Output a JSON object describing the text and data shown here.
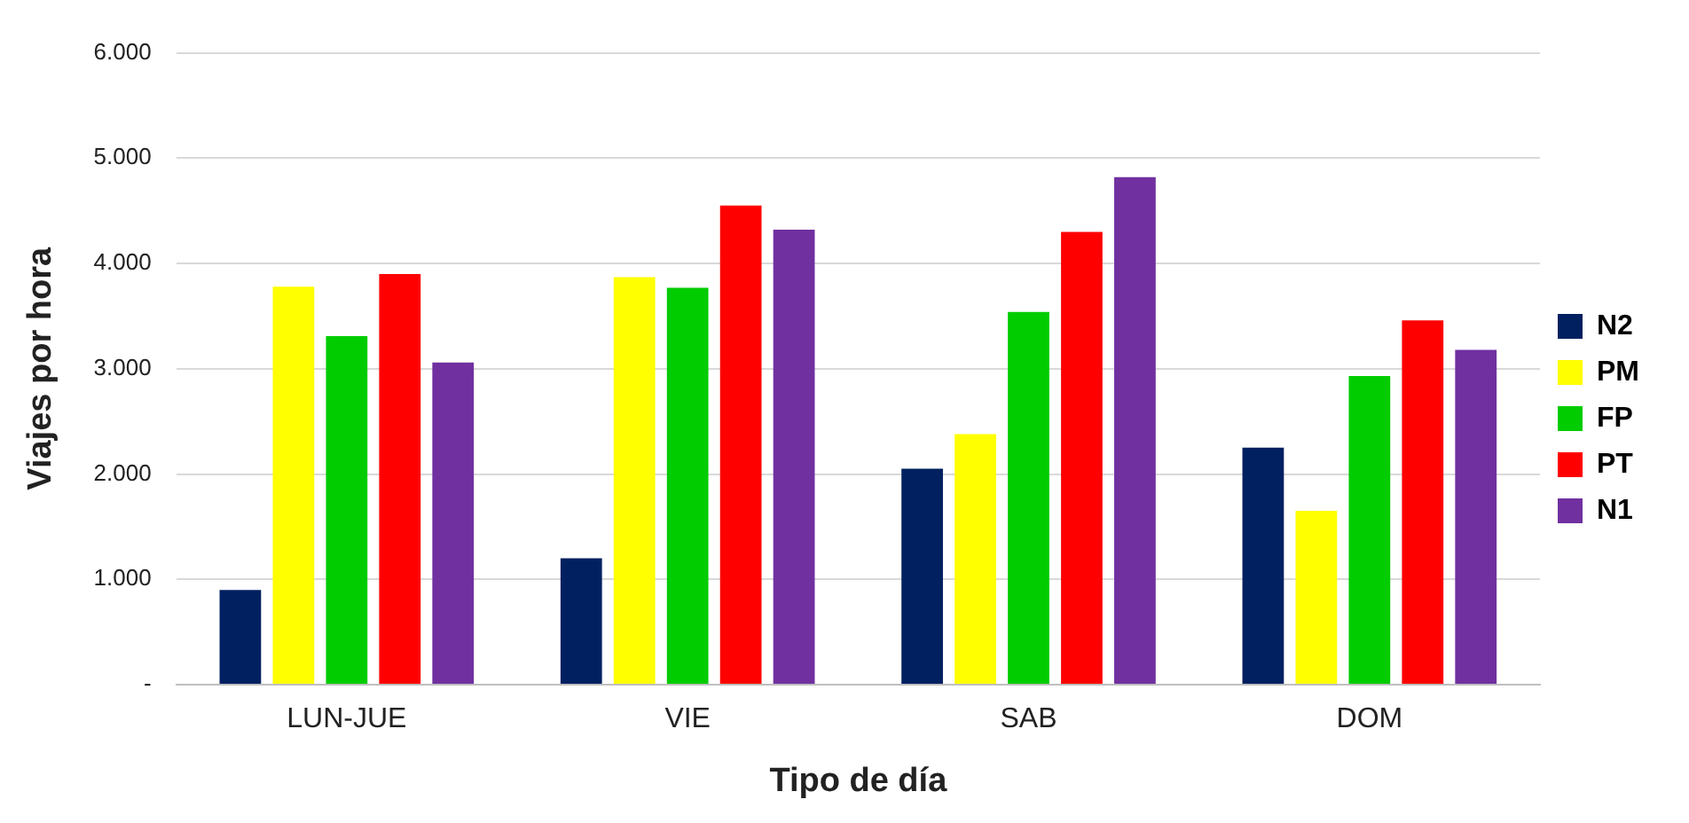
{
  "chart_data": {
    "type": "bar",
    "xlabel": "Tipo de día",
    "ylabel": "Viajes por hora",
    "categories": [
      "LUN-JUE",
      "VIE",
      "SAB",
      "DOM"
    ],
    "series": [
      {
        "name": "N2",
        "color": "#002060",
        "values": [
          900,
          1200,
          2050,
          2250
        ]
      },
      {
        "name": "PM",
        "color": "#ffff00",
        "values": [
          3780,
          3870,
          2380,
          1650
        ]
      },
      {
        "name": "FP",
        "color": "#00cc00",
        "values": [
          3310,
          3770,
          3540,
          2930
        ]
      },
      {
        "name": "PT",
        "color": "#ff0000",
        "values": [
          3900,
          4550,
          4300,
          3460
        ]
      },
      {
        "name": "N1",
        "color": "#7030a0",
        "values": [
          3060,
          4320,
          4820,
          3180
        ]
      }
    ],
    "ylim": [
      0,
      6000
    ],
    "yticks": [
      {
        "value": 0,
        "label": "-"
      },
      {
        "value": 1000,
        "label": "1.000"
      },
      {
        "value": 2000,
        "label": "2.000"
      },
      {
        "value": 3000,
        "label": "3.000"
      },
      {
        "value": 4000,
        "label": "4.000"
      },
      {
        "value": 5000,
        "label": "5.000"
      },
      {
        "value": 6000,
        "label": "6.000"
      }
    ],
    "grid": "y",
    "legend": "right"
  }
}
